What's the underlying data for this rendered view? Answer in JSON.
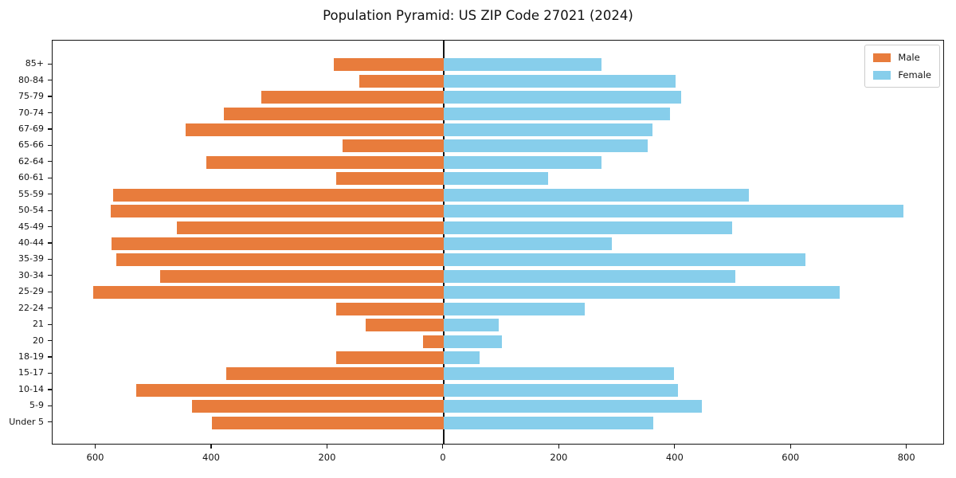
{
  "chart_data": {
    "type": "bar",
    "subtype": "population-pyramid",
    "title": "Population Pyramid: US ZIP Code 27021 (2024)",
    "categories": [
      "85+",
      "80-84",
      "75-79",
      "70-74",
      "67-69",
      "65-66",
      "62-64",
      "60-61",
      "55-59",
      "50-54",
      "45-49",
      "40-44",
      "35-39",
      "30-34",
      "25-29",
      "22-24",
      "21",
      "20",
      "18-19",
      "15-17",
      "10-14",
      "5-9",
      "Under 5"
    ],
    "series": [
      {
        "name": "Male",
        "side": "left",
        "color": "#e87c3c",
        "values": [
          190,
          145,
          315,
          380,
          445,
          175,
          410,
          185,
          570,
          575,
          460,
          573,
          565,
          490,
          605,
          185,
          135,
          35,
          185,
          375,
          530,
          435,
          400
        ]
      },
      {
        "name": "Female",
        "side": "right",
        "color": "#87ceeb",
        "values": [
          272,
          400,
          410,
          390,
          360,
          352,
          272,
          180,
          527,
          793,
          498,
          290,
          624,
          503,
          684,
          243,
          95,
          100,
          62,
          397,
          404,
          445,
          362
        ]
      }
    ],
    "x_ticks": [
      -600,
      -400,
      -200,
      0,
      200,
      400,
      600,
      800
    ],
    "x_tick_labels": [
      "600",
      "400",
      "200",
      "0",
      "200",
      "400",
      "600",
      "800"
    ],
    "xlim": [
      -675,
      865
    ],
    "xlabel": "",
    "ylabel": "",
    "grid": false,
    "zero_line": true,
    "legend": {
      "position": "upper-right",
      "items": [
        {
          "label": "Male",
          "color": "#e87c3c"
        },
        {
          "label": "Female",
          "color": "#87ceeb"
        }
      ]
    }
  }
}
